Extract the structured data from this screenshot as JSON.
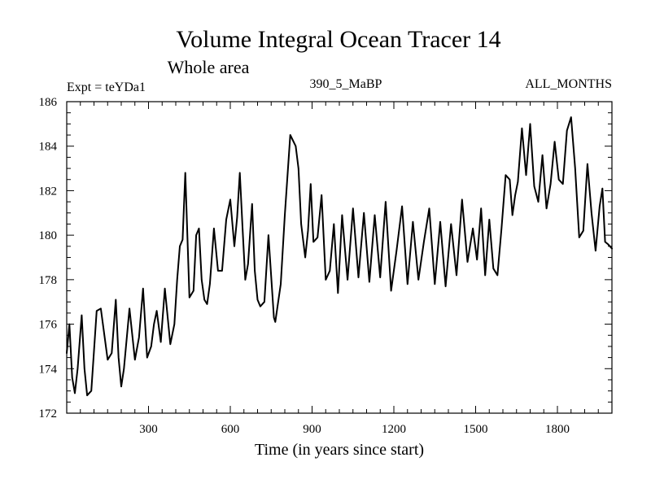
{
  "chart_data": {
    "type": "line",
    "title": "Volume Integral Ocean Tracer 14",
    "subtitle": "Whole area",
    "experiment_label": "Expt = teYDa1",
    "run_label": "390_5_MaBP",
    "months_label": "ALL_MONTHS",
    "xlabel": "Time (in years since start)",
    "ylabel": "",
    "xlim": [
      0,
      2000
    ],
    "ylim": [
      172,
      186
    ],
    "xticks": [
      300,
      600,
      900,
      1200,
      1500,
      1800
    ],
    "yticks": [
      172,
      174,
      176,
      178,
      180,
      182,
      184,
      186
    ],
    "series": [
      {
        "name": "Ocean Tracer 14",
        "color": "#000000",
        "x": [
          0,
          10,
          20,
          30,
          40,
          55,
          65,
          75,
          90,
          100,
          110,
          125,
          150,
          165,
          180,
          190,
          200,
          210,
          230,
          250,
          265,
          280,
          295,
          310,
          320,
          330,
          345,
          360,
          380,
          395,
          405,
          415,
          425,
          435,
          450,
          465,
          475,
          485,
          495,
          505,
          515,
          525,
          540,
          555,
          570,
          585,
          600,
          615,
          625,
          635,
          645,
          655,
          665,
          680,
          690,
          700,
          710,
          725,
          740,
          760,
          765,
          785,
          800,
          820,
          840,
          850,
          860,
          875,
          885,
          895,
          905,
          920,
          935,
          950,
          965,
          980,
          995,
          1010,
          1030,
          1050,
          1070,
          1090,
          1110,
          1130,
          1150,
          1170,
          1190,
          1210,
          1230,
          1250,
          1270,
          1290,
          1310,
          1330,
          1350,
          1370,
          1390,
          1410,
          1430,
          1450,
          1470,
          1490,
          1505,
          1520,
          1535,
          1550,
          1565,
          1580,
          1595,
          1610,
          1625,
          1635,
          1645,
          1655,
          1670,
          1685,
          1700,
          1715,
          1730,
          1745,
          1760,
          1775,
          1790,
          1805,
          1820,
          1835,
          1850,
          1865,
          1880,
          1895,
          1910,
          1925,
          1940,
          1955,
          1965,
          1975,
          1985,
          2000
        ],
        "y": [
          174.7,
          176.0,
          173.6,
          172.9,
          174.0,
          176.4,
          174.0,
          172.8,
          173.0,
          174.8,
          176.6,
          176.7,
          174.4,
          174.7,
          177.1,
          174.5,
          173.2,
          174.0,
          176.7,
          174.4,
          175.4,
          177.6,
          174.5,
          175.0,
          176.0,
          176.6,
          175.2,
          177.6,
          175.1,
          176.0,
          178.0,
          179.5,
          179.8,
          182.8,
          177.2,
          177.5,
          180.0,
          180.3,
          178.0,
          177.1,
          176.9,
          177.8,
          180.3,
          178.4,
          178.4,
          180.7,
          181.6,
          179.5,
          180.8,
          182.8,
          180.3,
          178.0,
          178.7,
          181.4,
          178.4,
          177.1,
          176.8,
          177.0,
          180.0,
          176.3,
          176.1,
          177.8,
          180.9,
          184.5,
          184.0,
          183.0,
          180.5,
          179.0,
          180.2,
          182.3,
          179.7,
          179.9,
          181.8,
          178.0,
          178.4,
          180.5,
          177.4,
          180.9,
          178.0,
          181.2,
          178.1,
          181.0,
          177.9,
          180.9,
          178.1,
          181.5,
          177.5,
          179.3,
          181.3,
          177.8,
          180.6,
          178.0,
          179.7,
          181.2,
          177.8,
          180.6,
          177.7,
          180.5,
          178.2,
          181.6,
          178.8,
          180.3,
          178.9,
          181.2,
          178.2,
          180.7,
          178.5,
          178.2,
          180.3,
          182.7,
          182.5,
          180.9,
          181.8,
          182.4,
          184.8,
          182.7,
          185.0,
          182.2,
          181.5,
          183.6,
          181.2,
          182.3,
          184.2,
          182.5,
          182.3,
          184.7,
          185.3,
          183.0,
          179.9,
          180.2,
          183.2,
          181.0,
          179.3,
          181.3,
          182.1,
          179.7,
          179.6,
          179.4
        ]
      }
    ]
  }
}
